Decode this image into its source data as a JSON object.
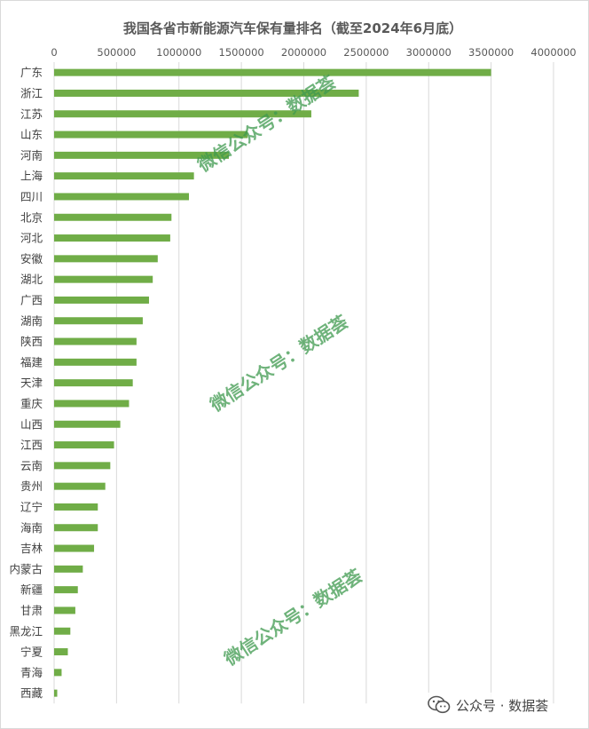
{
  "chart_data": {
    "type": "bar",
    "orientation": "horizontal",
    "title": "我国各省市新能源汽车保有量排名（截至2024年6月底）",
    "xlim": [
      0,
      4000000
    ],
    "x_ticks": [
      "0",
      "500000",
      "1000000",
      "1500000",
      "2000000",
      "2500000",
      "3000000",
      "3500000",
      "4000000"
    ],
    "x_axis_position": "top",
    "grid": true,
    "bar_color": "#70ad47",
    "categories": [
      "广东",
      "浙江",
      "江苏",
      "山东",
      "河南",
      "上海",
      "四川",
      "北京",
      "河北",
      "安徽",
      "湖北",
      "广西",
      "湖南",
      "陕西",
      "福建",
      "天津",
      "重庆",
      "山西",
      "江西",
      "云南",
      "贵州",
      "辽宁",
      "海南",
      "吉林",
      "内蒙古",
      "新疆",
      "甘肃",
      "黑龙江",
      "宁夏",
      "青海",
      "西藏"
    ],
    "values": [
      3500000,
      2440000,
      2060000,
      1550000,
      1400000,
      1120000,
      1080000,
      940000,
      930000,
      830000,
      790000,
      760000,
      710000,
      660000,
      660000,
      630000,
      600000,
      530000,
      480000,
      450000,
      410000,
      350000,
      350000,
      320000,
      230000,
      190000,
      170000,
      130000,
      110000,
      60000,
      25000
    ]
  },
  "watermark": {
    "text": "微信公众号：数据荟",
    "color": "#3f9a4f"
  },
  "source": {
    "label": "公众号 · 数据荟",
    "icon": "wechat-icon"
  }
}
